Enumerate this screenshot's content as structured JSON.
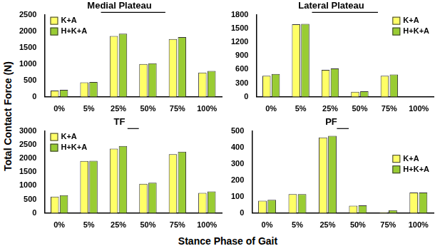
{
  "y_label": "Total Contact Force (N)",
  "x_label": "Stance Phase of Gait",
  "chart_data": [
    {
      "type": "bar",
      "title": "Medial Plateau",
      "categories": [
        "0%",
        "5%",
        "25%",
        "50%",
        "75%",
        "100%"
      ],
      "series": [
        {
          "name": "K+A",
          "color": "#ffff66",
          "values": [
            190,
            440,
            1850,
            1000,
            1760,
            740
          ]
        },
        {
          "name": "H+K+A",
          "color": "#99cc33",
          "values": [
            210,
            450,
            1920,
            1020,
            1820,
            790
          ]
        }
      ],
      "ylim": [
        0,
        2500
      ],
      "yticks": [
        0,
        500,
        1000,
        1500,
        2000,
        2500
      ],
      "grid": false,
      "legend": "upper left"
    },
    {
      "type": "bar",
      "title": "Lateral Plateau",
      "categories": [
        "0%",
        "5%",
        "25%",
        "50%",
        "75%",
        "100%"
      ],
      "series": [
        {
          "name": "K+A",
          "color": "#ffff66",
          "values": [
            460,
            1590,
            590,
            110,
            460,
            5
          ]
        },
        {
          "name": "H+K+A",
          "color": "#99cc33",
          "values": [
            500,
            1600,
            620,
            120,
            490,
            5
          ]
        }
      ],
      "ylim": [
        0,
        1800
      ],
      "yticks": [
        0,
        300,
        600,
        900,
        1200,
        1500,
        1800
      ],
      "grid": false,
      "legend": "upper right"
    },
    {
      "type": "bar",
      "title": "TF",
      "categories": [
        "0%",
        "5%",
        "25%",
        "50%",
        "75%",
        "100%"
      ],
      "series": [
        {
          "name": "K+A",
          "color": "#ffff66",
          "values": [
            600,
            1900,
            2350,
            1070,
            2150,
            740
          ]
        },
        {
          "name": "H+K+A",
          "color": "#99cc33",
          "values": [
            650,
            1910,
            2450,
            1110,
            2240,
            790
          ]
        }
      ],
      "ylim": [
        0,
        3000
      ],
      "yticks": [
        0,
        500,
        1000,
        1500,
        2000,
        2500,
        3000
      ],
      "grid": false,
      "legend": "upper left"
    },
    {
      "type": "bar",
      "title": "PF",
      "categories": [
        "0%",
        "5%",
        "25%",
        "50%",
        "75%",
        "100%"
      ],
      "series": [
        {
          "name": "K+A",
          "color": "#ffff66",
          "values": [
            75,
            115,
            460,
            45,
            5,
            125
          ]
        },
        {
          "name": "H+K+A",
          "color": "#99cc33",
          "values": [
            80,
            115,
            470,
            47,
            18,
            125
          ]
        }
      ],
      "ylim": [
        0,
        500
      ],
      "yticks": [
        0,
        100,
        200,
        300,
        400,
        500
      ],
      "grid": false,
      "legend": "right"
    }
  ]
}
